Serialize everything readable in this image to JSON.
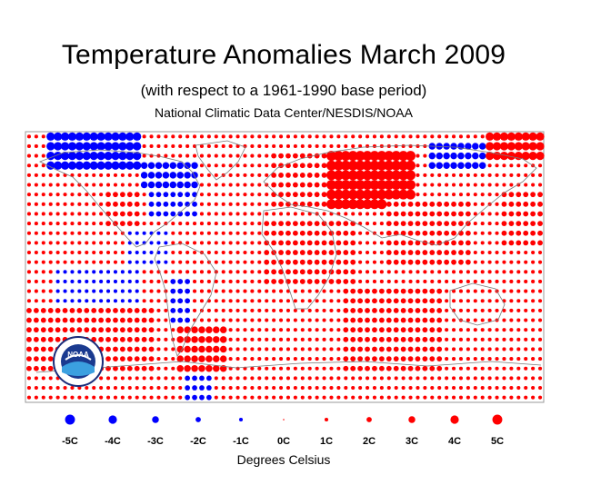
{
  "title": "Temperature Anomalies March 2009",
  "subtitle": "(with respect to a 1961-1990 base period)",
  "source": "National Climatic Data Center/NESDIS/NOAA",
  "logo": {
    "text": "NOAA",
    "icon": "noaa-logo-icon"
  },
  "legend": {
    "title": "Degrees Celsius",
    "items": [
      {
        "label": "-5C",
        "value": -5
      },
      {
        "label": "-4C",
        "value": -4
      },
      {
        "label": "-3C",
        "value": -3
      },
      {
        "label": "-2C",
        "value": -2
      },
      {
        "label": "-1C",
        "value": -1
      },
      {
        "label": "0C",
        "value": 0
      },
      {
        "label": "1C",
        "value": 1
      },
      {
        "label": "2C",
        "value": 2
      },
      {
        "label": "3C",
        "value": 3
      },
      {
        "label": "4C",
        "value": 4
      },
      {
        "label": "5C",
        "value": 5
      }
    ]
  },
  "colors": {
    "warm": "#ff0000",
    "cold": "#0000ff",
    "land_outline": "#7a7a7a",
    "frame": "#9a9a9a"
  },
  "map_data": {
    "projection": "equirectangular",
    "lon_range": [
      -180,
      180
    ],
    "lat_range": [
      -60,
      80
    ],
    "grid_step_deg": 5,
    "regions": [
      {
        "name": "north-canada",
        "lon": [
          -165,
          -100
        ],
        "lat": [
          60,
          80
        ],
        "anomaly": -4
      },
      {
        "name": "hudson-labrador",
        "lon": [
          -100,
          -60
        ],
        "lat": [
          50,
          65
        ],
        "anomaly": -3
      },
      {
        "name": "eastern-north-america",
        "lon": [
          -95,
          -60
        ],
        "lat": [
          35,
          50
        ],
        "anomaly": -2
      },
      {
        "name": "western-usa",
        "lon": [
          -125,
          -100
        ],
        "lat": [
          30,
          50
        ],
        "anomaly": 2
      },
      {
        "name": "greenland",
        "lon": [
          -60,
          -20
        ],
        "lat": [
          60,
          80
        ],
        "anomaly": 1
      },
      {
        "name": "central-america",
        "lon": [
          -110,
          -80
        ],
        "lat": [
          10,
          30
        ],
        "anomaly": -1
      },
      {
        "name": "western-south-america",
        "lon": [
          -80,
          -65
        ],
        "lat": [
          -20,
          5
        ],
        "anomaly": -2
      },
      {
        "name": "south-america-south",
        "lon": [
          -75,
          -40
        ],
        "lat": [
          -45,
          -20
        ],
        "anomaly": 3
      },
      {
        "name": "south-atlantic-tip",
        "lon": [
          -70,
          -50
        ],
        "lat": [
          -60,
          -45
        ],
        "anomaly": -2
      },
      {
        "name": "europe",
        "lon": [
          -10,
          30
        ],
        "lat": [
          40,
          70
        ],
        "anomaly": 2
      },
      {
        "name": "russia-siberia",
        "lon": [
          30,
          90
        ],
        "lat": [
          40,
          70
        ],
        "anomaly": 5
      },
      {
        "name": "eastern-siberia",
        "lon": [
          100,
          140
        ],
        "lat": [
          60,
          75
        ],
        "anomaly": -3
      },
      {
        "name": "far-east-siberia",
        "lon": [
          140,
          180
        ],
        "lat": [
          65,
          80
        ],
        "anomaly": 4
      },
      {
        "name": "africa-north",
        "lon": [
          -15,
          50
        ],
        "lat": [
          0,
          35
        ],
        "anomaly": 2
      },
      {
        "name": "africa-south",
        "lon": [
          10,
          40
        ],
        "lat": [
          -35,
          0
        ],
        "anomaly": 1
      },
      {
        "name": "india-china",
        "lon": [
          70,
          130
        ],
        "lat": [
          10,
          45
        ],
        "anomaly": 2
      },
      {
        "name": "australia",
        "lon": [
          115,
          155
        ],
        "lat": [
          -40,
          -10
        ],
        "anomaly": 1
      },
      {
        "name": "indian-ocean",
        "lon": [
          40,
          110
        ],
        "lat": [
          -45,
          0
        ],
        "anomaly": 2
      },
      {
        "name": "east-pacific-equator",
        "lon": [
          -160,
          -100
        ],
        "lat": [
          -10,
          10
        ],
        "anomaly": -1
      },
      {
        "name": "north-pacific",
        "lon": [
          150,
          180
        ],
        "lat": [
          20,
          50
        ],
        "anomaly": 2
      },
      {
        "name": "south-pacific-east",
        "lon": [
          -180,
          -90
        ],
        "lat": [
          -45,
          -10
        ],
        "anomaly": 2
      }
    ]
  }
}
